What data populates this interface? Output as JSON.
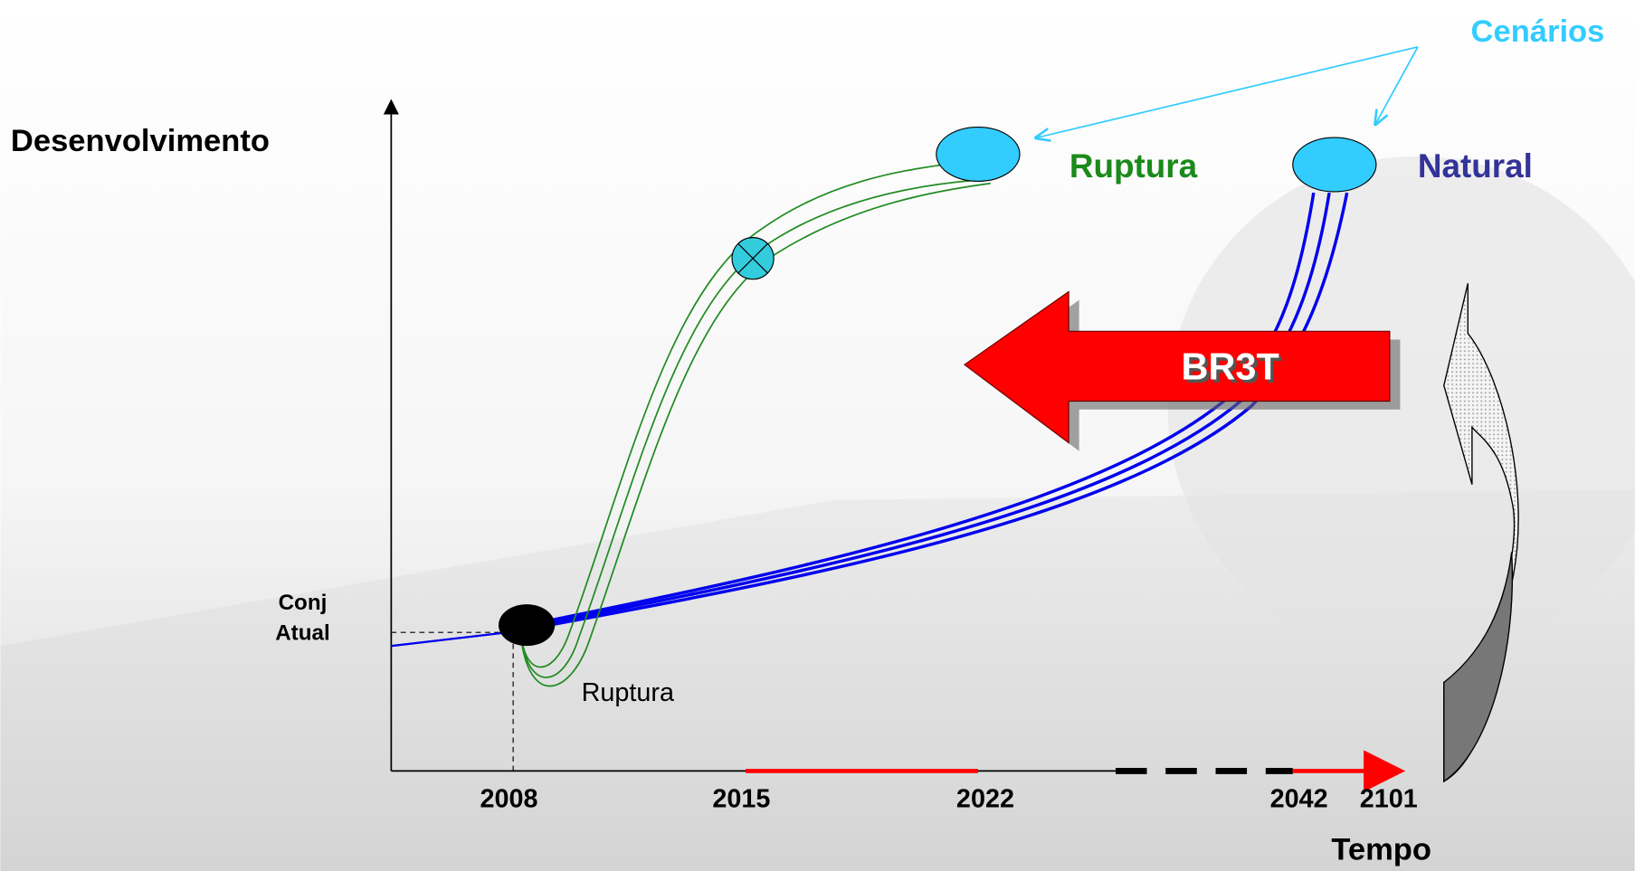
{
  "scenarios_label": "Cenários",
  "y_axis_label": "Desenvolvimento",
  "x_axis_label": "Tempo",
  "scenario_rupture": "Ruptura",
  "scenario_natural": "Natural",
  "arrow_label": "BR3T",
  "current_state": [
    "Conj",
    "Atual"
  ],
  "dip_label": "Ruptura",
  "years": [
    "2008",
    "2015",
    "2022",
    "2042",
    "2101"
  ]
}
